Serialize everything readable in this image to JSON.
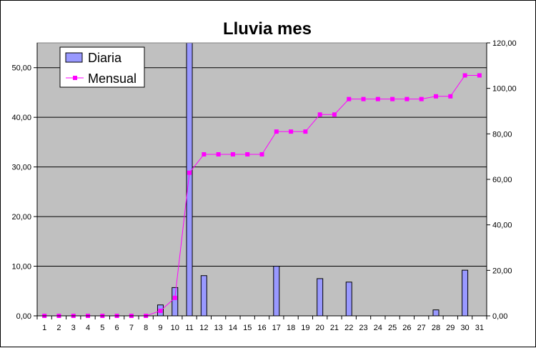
{
  "chart_data": {
    "type": "bar",
    "title": "Lluvia mes",
    "categories": [
      "1",
      "2",
      "3",
      "4",
      "5",
      "6",
      "7",
      "8",
      "9",
      "10",
      "11",
      "12",
      "13",
      "14",
      "15",
      "16",
      "17",
      "18",
      "19",
      "20",
      "21",
      "22",
      "23",
      "24",
      "25",
      "26",
      "27",
      "28",
      "29",
      "30",
      "31"
    ],
    "series": [
      {
        "name": "Diaria",
        "type": "bar",
        "axis": "left",
        "color": "#9999ff",
        "values": [
          0,
          0,
          0,
          0,
          0,
          0,
          0,
          0,
          2.2,
          5.7,
          55.0,
          8.1,
          0,
          0,
          0,
          0,
          10.0,
          0,
          0,
          7.5,
          0,
          6.8,
          0,
          0,
          0,
          0,
          0,
          1.2,
          0,
          9.2,
          0
        ]
      },
      {
        "name": "Mensual",
        "type": "line",
        "axis": "right",
        "color": "#ff00ff",
        "values": [
          0,
          0,
          0,
          0,
          0,
          0,
          0,
          0,
          2.2,
          7.9,
          62.9,
          71.0,
          71.0,
          71.0,
          71.0,
          71.0,
          81.0,
          81.0,
          81.0,
          88.5,
          88.5,
          95.3,
          95.3,
          95.3,
          95.3,
          95.3,
          95.3,
          96.5,
          96.5,
          105.7,
          105.7
        ]
      }
    ],
    "ylim_left": [
      0,
      55
    ],
    "ylim_right": [
      0,
      120
    ],
    "yticks_left": [
      "0,00",
      "10,00",
      "20,00",
      "30,00",
      "40,00",
      "50,00"
    ],
    "yticks_left_values": [
      0,
      10,
      20,
      30,
      40,
      50
    ],
    "yticks_right": [
      "0,00",
      "20,00",
      "40,00",
      "60,00",
      "80,00",
      "100,00",
      "120,00"
    ],
    "yticks_right_values": [
      0,
      20,
      40,
      60,
      80,
      100,
      120
    ],
    "grid": true,
    "legend_position": "top-left",
    "plot_background": "#c0c0c0"
  }
}
